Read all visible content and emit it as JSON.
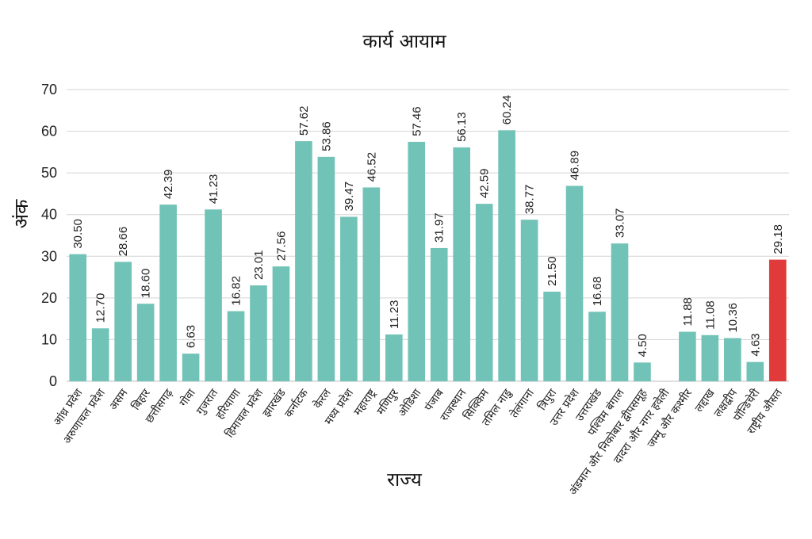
{
  "chart_data": {
    "type": "bar",
    "title": "कार्य आयाम",
    "xlabel": "राज्य",
    "ylabel": "अंक",
    "ylim": [
      0,
      70
    ],
    "yticks": [
      0,
      10,
      20,
      30,
      40,
      50,
      60,
      70
    ],
    "grid": true,
    "colors": {
      "bar": "#72c3b7",
      "highlight": "#e03a3a"
    },
    "highlight_category": "राष्ट्रीय औसत",
    "categories": [
      "आंध्र प्रदेश",
      "अरुणाचल प्रदेश",
      "असम",
      "बिहार",
      "छत्तीसगढ़",
      "गोवा",
      "गुजरात",
      "हरियाणा",
      "हिमाचल प्रदेश",
      "झारखंड",
      "कर्नाटक",
      "केरल",
      "मध्य प्रदेश",
      "महाराष्ट्र",
      "मणिपुर",
      "ओडिशा",
      "पंजाब",
      "राजस्थान",
      "सिक्किम",
      "तमिल नाडु",
      "तेलंगाना",
      "त्रिपुरा",
      "उत्तर प्रदेश",
      "उत्तराखंड",
      "पश्चिम बंगाल",
      "अंडमान और निकोबार द्वीपसमूह",
      "दादरा और नगर हवेली",
      "जम्मू और कश्मीर",
      "लद्दाख",
      "लक्षद्वीप",
      "पॉन्डिचेरी",
      "राष्ट्रीय औसत"
    ],
    "values": [
      30.5,
      12.7,
      28.66,
      18.6,
      42.39,
      6.63,
      41.23,
      16.82,
      23.01,
      27.56,
      57.62,
      53.86,
      39.47,
      46.52,
      11.23,
      57.46,
      31.97,
      56.13,
      42.59,
      60.24,
      38.77,
      21.5,
      46.89,
      16.68,
      33.07,
      4.5,
      null,
      11.88,
      11.08,
      10.36,
      4.63,
      29.18
    ],
    "value_labels": [
      "30.50",
      "12.70",
      "28.66",
      "18.60",
      "42.39",
      "6.63",
      "41.23",
      "16.82",
      "23.01",
      "27.56",
      "57.62",
      "53.86",
      "39.47",
      "46.52",
      "11.23",
      "57.46",
      "31.97",
      "56.13",
      "42.59",
      "60.24",
      "38.77",
      "21.50",
      "46.89",
      "16.68",
      "33.07",
      "4.50",
      "",
      "11.88",
      "11.08",
      "10.36",
      "4.63",
      "29.18"
    ]
  }
}
